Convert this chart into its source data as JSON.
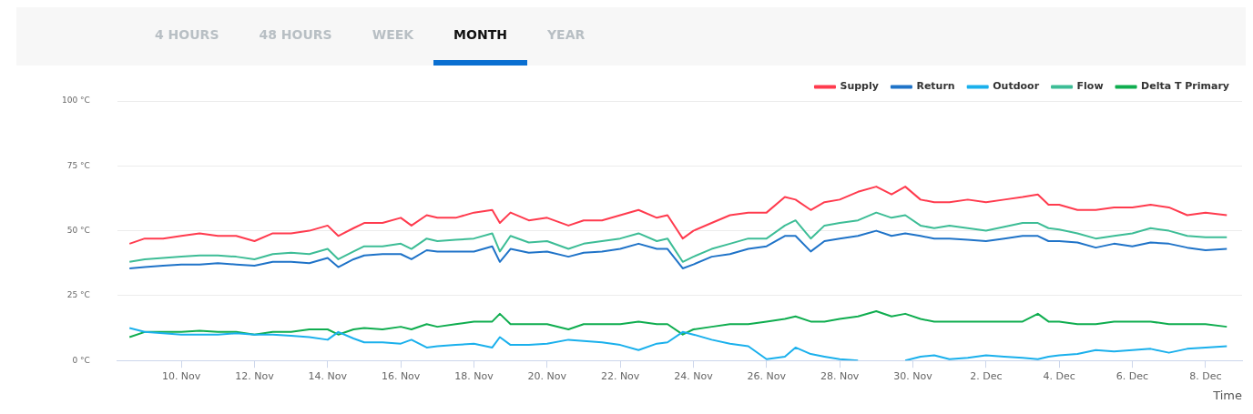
{
  "chart_data": {
    "type": "line",
    "xlabel": "Time",
    "annotations": [
      "4 HOURS",
      "48 HOURS",
      "WEEK",
      "MONTH",
      "YEAR"
    ],
    "x": [
      "--11-08T14:00",
      "--11-09T00:00",
      "--11-09T12:00",
      "--11-10T00:00",
      "--11-10T12:00",
      "--11-11T00:00",
      "--11-11T12:00",
      "--11-12T00:00",
      "--11-12T12:00",
      "--11-13T00:00",
      "--11-13T12:00",
      "--11-14T00:00",
      "--11-14T07:00",
      "--11-14T17:00",
      "--11-15T00:00",
      "--11-15T12:00",
      "--11-16T00:00",
      "--11-16T07:00",
      "--11-16T17:00",
      "--11-17T00:00",
      "--11-17T12:00",
      "--11-18T00:00",
      "--11-18T12:00",
      "--11-18T17:00",
      "--11-19T00:00",
      "--11-19T12:00",
      "--11-20T00:00",
      "--11-20T14:00",
      "--11-21T00:00",
      "--11-21T12:00",
      "--11-22T00:00",
      "--11-22T12:00",
      "--11-23T00:00",
      "--11-23T07:00",
      "--11-23T17:00",
      "--11-24T00:00",
      "--11-24T12:00",
      "--11-25T00:00",
      "--11-25T12:00",
      "--11-26T00:00",
      "--11-26T12:00",
      "--11-26T19:00",
      "--11-27T05:00",
      "--11-27T14:00",
      "--11-28T00:00",
      "--11-28T12:00",
      "--11-29T00:00",
      "--11-29T10:00",
      "--11-29T19:00",
      "--11-30T05:00",
      "--11-30T14:00",
      "--12-01T00:00",
      "--12-01T12:00",
      "--12-02T00:00",
      "--12-02T12:00",
      "--12-03T00:00",
      "--12-03T10:00",
      "--12-03T17:00",
      "--12-04T00:00",
      "--12-04T12:00",
      "--12-05T00:00",
      "--12-05T12:00",
      "--12-06T00:00",
      "--12-06T12:00",
      "--12-07T00:00",
      "--12-07T12:00",
      "--12-08T00:00",
      "--12-08T14:00"
    ],
    "series": [
      {
        "name": "Supply",
        "color": "#ff3b4e",
        "values": [
          45,
          47,
          47,
          48,
          49,
          48,
          48,
          46,
          49,
          49,
          50,
          52,
          48,
          51,
          53,
          53,
          55,
          52,
          56,
          55,
          55,
          57,
          58,
          53,
          57,
          54,
          55,
          52,
          54,
          54,
          56,
          58,
          55,
          56,
          47,
          50,
          53,
          56,
          57,
          57,
          63,
          62,
          58,
          61,
          62,
          65,
          67,
          64,
          67,
          62,
          61,
          61,
          62,
          61,
          62,
          63,
          64,
          60,
          60,
          58,
          58,
          59,
          59,
          60,
          59,
          56,
          57,
          56
        ]
      },
      {
        "name": "Return",
        "color": "#1f73c8",
        "values": [
          35.5,
          36,
          36.5,
          37,
          37,
          37.5,
          37,
          36.5,
          38,
          38,
          37.5,
          39.5,
          36,
          39,
          40.5,
          41,
          41,
          39,
          42.5,
          42,
          42,
          42,
          44,
          38,
          43,
          41.5,
          42,
          40,
          41.5,
          42,
          43,
          45,
          43,
          43,
          35.5,
          37,
          40,
          41,
          43,
          44,
          48,
          48,
          42,
          46,
          47,
          48,
          50,
          48,
          49,
          48,
          47,
          47,
          46.5,
          46,
          47,
          48,
          48,
          46,
          46,
          45.5,
          43.5,
          45,
          44,
          45.5,
          45,
          43.5,
          42.5,
          43
        ]
      },
      {
        "name": "Outdoor",
        "color": "#1ab0ec",
        "values": [
          12.5,
          11,
          10.5,
          10,
          10,
          10,
          10.5,
          10,
          10,
          9.5,
          9,
          8,
          11,
          8.5,
          7,
          7,
          6.5,
          8,
          5,
          5.5,
          6,
          6.5,
          5,
          9,
          6,
          6,
          6.5,
          8,
          7.5,
          7,
          6,
          4,
          6.5,
          7,
          11,
          10,
          8,
          6.5,
          5.5,
          0.5,
          1.5,
          5,
          2.5,
          1.5,
          0.5,
          0,
          null,
          null,
          0,
          1.5,
          2,
          0.5,
          1,
          2,
          1.5,
          1,
          0.5,
          1.5,
          2,
          2.5,
          4,
          3.5,
          4,
          4.5,
          3,
          4.5,
          5,
          5.5
        ]
      },
      {
        "name": "Flow",
        "color": "#3dbd96",
        "values": [
          38,
          39,
          39.5,
          40,
          40.5,
          40.5,
          40,
          39,
          41,
          41.5,
          41,
          43,
          39,
          42,
          44,
          44,
          45,
          43,
          47,
          46,
          46.5,
          47,
          49,
          42,
          48,
          45.5,
          46,
          43,
          45,
          46,
          47,
          49,
          46,
          47,
          38,
          40,
          43,
          45,
          47,
          47,
          52,
          54,
          47,
          52,
          53,
          54,
          57,
          55,
          56,
          52,
          51,
          52,
          51,
          50,
          51.5,
          53,
          53,
          51,
          50.5,
          49,
          47,
          48,
          49,
          51,
          50,
          48,
          47.5,
          47.5
        ]
      },
      {
        "name": "Delta T Primary",
        "color": "#0fad4f",
        "values": [
          9,
          11,
          11,
          11,
          11.5,
          11,
          11,
          10,
          11,
          11,
          12,
          12,
          10,
          12,
          12.5,
          12,
          13,
          12,
          14,
          13,
          14,
          15,
          15,
          18,
          14,
          14,
          14,
          12,
          14,
          14,
          14,
          15,
          14,
          14,
          10,
          12,
          13,
          14,
          14,
          15,
          16,
          17,
          15,
          15,
          16,
          17,
          19,
          17,
          18,
          16,
          15,
          15,
          15,
          15,
          15,
          15,
          18,
          15,
          15,
          14,
          14,
          15,
          15,
          15,
          14,
          14,
          14,
          13
        ]
      }
    ],
    "xlim": [
      "--11-08T06:00",
      "--12-09T00:00"
    ],
    "xticks": [
      {
        "value": "--11-10",
        "label": "10. Nov"
      },
      {
        "value": "--11-12",
        "label": "12. Nov"
      },
      {
        "value": "--11-14",
        "label": "14. Nov"
      },
      {
        "value": "--11-16",
        "label": "16. Nov"
      },
      {
        "value": "--11-18",
        "label": "18. Nov"
      },
      {
        "value": "--11-20",
        "label": "20. Nov"
      },
      {
        "value": "--11-22",
        "label": "22. Nov"
      },
      {
        "value": "--11-24",
        "label": "24. Nov"
      },
      {
        "value": "--11-26",
        "label": "26. Nov"
      },
      {
        "value": "--11-28",
        "label": "28. Nov"
      },
      {
        "value": "--11-30",
        "label": "30. Nov"
      },
      {
        "value": "--12-02",
        "label": "2. Dec"
      },
      {
        "value": "--12-04",
        "label": "4. Dec"
      },
      {
        "value": "--12-06",
        "label": "6. Dec"
      },
      {
        "value": "--12-08",
        "label": "8. Dec"
      }
    ],
    "ylim": [
      0,
      100
    ],
    "yticks": [
      {
        "value": 0,
        "label": "0 °C"
      },
      {
        "value": 25,
        "label": "25 °C"
      },
      {
        "value": 50,
        "label": "50 °C"
      },
      {
        "value": 75,
        "label": "75 °C"
      },
      {
        "value": 100,
        "label": "100 °C"
      }
    ],
    "grid": "y",
    "legend": "top right",
    "marker": "none",
    "line_style": "solid"
  }
}
